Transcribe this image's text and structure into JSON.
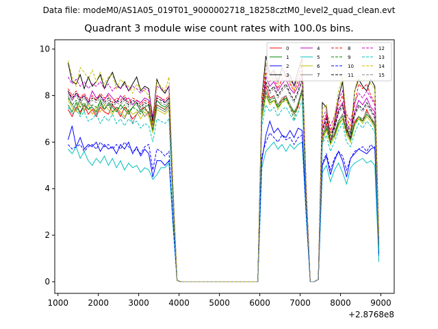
{
  "page": {
    "file_line": "Data file: modeM0/AS1A05_019T01_9000002718_18258cztM0_level2_quad_clean.evt"
  },
  "chart_data": {
    "type": "line",
    "title": "Quadrant 3 module wise count rates with 100.0s bins.",
    "xlabel": "",
    "ylabel": "",
    "x_offset_label": "+2.8768e8",
    "xlim": [
      920,
      9330
    ],
    "ylim": [
      -0.5,
      10.4
    ],
    "xticks": [
      1000,
      2000,
      3000,
      4000,
      5000,
      6000,
      7000,
      8000,
      9000
    ],
    "xtick_labels": [
      "1000",
      "2000",
      "3000",
      "4000",
      "5000",
      "6000",
      "7000",
      "8000",
      "9000"
    ],
    "yticks": [
      0,
      2,
      4,
      6,
      8,
      10
    ],
    "ytick_labels": [
      "0",
      "2",
      "4",
      "6",
      "8",
      "10"
    ],
    "legend_loc": "upper-right",
    "legend_columns": 4,
    "x": [
      1250,
      1350,
      1450,
      1550,
      1650,
      1750,
      1850,
      1950,
      2050,
      2150,
      2250,
      2350,
      2450,
      2550,
      2650,
      2750,
      2850,
      2950,
      3050,
      3150,
      3250,
      3350,
      3450,
      3550,
      3650,
      3750,
      3850,
      3950,
      4050,
      5950,
      6050,
      6150,
      6250,
      6350,
      6450,
      6550,
      6650,
      6750,
      6850,
      6950,
      7050,
      7150,
      7250,
      7350,
      7450,
      7550,
      7650,
      7750,
      7850,
      7950,
      8050,
      8150,
      8250,
      8350,
      8450,
      8550,
      8650,
      8750,
      8850,
      8950
    ],
    "series": [
      {
        "name": "0",
        "color": "#ff0000",
        "dash": "solid",
        "values": [
          7.4,
          7.1,
          7.5,
          7.3,
          7.6,
          7.2,
          7.4,
          7.1,
          7.5,
          7.3,
          7.2,
          7.6,
          7.4,
          7.1,
          7.5,
          7.3,
          7.0,
          7.2,
          7.4,
          7.5,
          7.2,
          6.7,
          7.6,
          7.5,
          7.4,
          7.6,
          3.5,
          0.05,
          0.0,
          0.0,
          7.2,
          8.4,
          7.9,
          8.0,
          7.6,
          7.8,
          8.0,
          7.6,
          7.2,
          7.5,
          8.2,
          3.5,
          0.0,
          0.0,
          0.1,
          6.2,
          6.8,
          6.1,
          6.3,
          6.9,
          7.2,
          6.5,
          6.2,
          6.9,
          7.1,
          6.9,
          7.4,
          7.0,
          6.8,
          1.5
        ]
      },
      {
        "name": "1",
        "color": "#008000",
        "dash": "solid",
        "values": [
          7.6,
          7.3,
          7.7,
          7.2,
          7.6,
          7.4,
          7.5,
          7.3,
          7.8,
          7.4,
          7.7,
          7.5,
          7.3,
          7.6,
          7.4,
          7.2,
          7.5,
          7.7,
          7.3,
          7.5,
          7.6,
          6.9,
          7.8,
          7.6,
          7.5,
          7.7,
          3.5,
          0.05,
          0.0,
          0.0,
          7.0,
          8.0,
          7.7,
          7.8,
          7.5,
          7.7,
          7.9,
          7.6,
          7.3,
          7.6,
          8.2,
          3.5,
          0.0,
          0.0,
          0.1,
          6.0,
          6.6,
          6.3,
          6.2,
          6.8,
          7.0,
          6.6,
          6.3,
          6.8,
          7.0,
          6.9,
          7.2,
          7.0,
          6.7,
          1.3
        ]
      },
      {
        "name": "2",
        "color": "#0000ff",
        "dash": "solid",
        "values": [
          6.1,
          6.7,
          5.8,
          6.2,
          5.7,
          5.9,
          5.8,
          6.0,
          5.6,
          5.9,
          5.7,
          5.8,
          5.5,
          5.9,
          5.7,
          6.0,
          5.5,
          5.8,
          5.4,
          5.7,
          5.5,
          4.5,
          5.2,
          5.2,
          5.0,
          5.2,
          2.5,
          0.05,
          0.0,
          0.0,
          5.2,
          6.3,
          6.9,
          6.4,
          6.6,
          6.3,
          6.2,
          6.5,
          6.2,
          6.6,
          6.5,
          3.0,
          0.0,
          0.0,
          0.1,
          5.0,
          5.4,
          4.6,
          5.2,
          5.6,
          5.2,
          4.5,
          5.3,
          5.5,
          5.7,
          5.6,
          5.5,
          5.7,
          5.8,
          1.1
        ]
      },
      {
        "name": "3",
        "color": "#000000",
        "dash": "solid",
        "values": [
          9.4,
          8.6,
          8.5,
          8.9,
          8.3,
          8.8,
          8.4,
          8.6,
          8.9,
          8.3,
          8.7,
          9.0,
          8.5,
          8.3,
          8.6,
          8.2,
          8.5,
          8.8,
          8.2,
          8.4,
          8.3,
          6.9,
          8.7,
          8.3,
          8.1,
          8.4,
          4.0,
          0.05,
          0.0,
          0.0,
          7.9,
          9.7,
          8.9,
          9.1,
          8.6,
          9.2,
          8.8,
          8.9,
          8.4,
          9.1,
          9.6,
          4.0,
          0.0,
          0.0,
          0.1,
          7.7,
          7.5,
          5.9,
          6.8,
          7.9,
          8.6,
          6.6,
          6.1,
          8.2,
          8.7,
          8.4,
          8.2,
          8.7,
          8.4,
          1.9
        ]
      },
      {
        "name": "4",
        "color": "#bf00bf",
        "dash": "solid",
        "values": [
          8.2,
          7.8,
          8.1,
          7.9,
          8.0,
          7.7,
          8.2,
          7.9,
          8.0,
          7.8,
          8.1,
          7.9,
          7.7,
          8.0,
          7.8,
          7.9,
          7.6,
          7.8,
          7.7,
          7.9,
          7.8,
          6.6,
          8.0,
          7.9,
          7.7,
          7.9,
          3.6,
          0.05,
          0.0,
          0.0,
          7.4,
          8.8,
          8.4,
          8.6,
          8.2,
          8.5,
          8.7,
          8.3,
          8.1,
          8.4,
          8.9,
          3.6,
          0.0,
          0.0,
          0.1,
          6.6,
          7.1,
          6.4,
          6.7,
          7.4,
          7.7,
          6.8,
          6.5,
          7.3,
          7.8,
          7.6,
          7.9,
          7.5,
          7.3,
          1.6
        ]
      },
      {
        "name": "5",
        "color": "#00bfbf",
        "dash": "solid",
        "values": [
          5.7,
          5.5,
          5.8,
          5.3,
          5.6,
          5.2,
          5.0,
          5.3,
          5.1,
          5.4,
          5.0,
          5.3,
          4.9,
          5.2,
          4.8,
          5.1,
          4.9,
          5.0,
          4.7,
          4.9,
          4.8,
          4.4,
          4.6,
          4.9,
          4.9,
          5.1,
          2.4,
          0.05,
          0.0,
          0.0,
          4.9,
          5.6,
          5.8,
          6.0,
          5.7,
          5.9,
          5.6,
          5.9,
          5.7,
          5.9,
          6.0,
          2.8,
          0.0,
          0.0,
          0.1,
          4.7,
          5.0,
          4.3,
          4.8,
          5.1,
          4.7,
          4.2,
          4.9,
          5.1,
          5.2,
          5.3,
          5.1,
          5.2,
          5.0,
          0.85
        ]
      },
      {
        "name": "6",
        "color": "#bfbf00",
        "dash": "solid",
        "values": [
          7.8,
          7.5,
          7.3,
          7.7,
          7.4,
          7.6,
          7.2,
          7.5,
          7.3,
          7.6,
          7.4,
          7.2,
          7.5,
          7.3,
          7.1,
          7.4,
          7.2,
          7.3,
          7.0,
          7.3,
          7.1,
          6.4,
          7.4,
          7.3,
          7.2,
          7.4,
          3.4,
          0.05,
          0.0,
          0.0,
          7.1,
          8.0,
          7.6,
          7.8,
          7.4,
          7.7,
          7.8,
          7.5,
          7.2,
          7.6,
          8.1,
          3.4,
          0.0,
          0.0,
          0.1,
          6.1,
          6.5,
          5.9,
          6.2,
          6.7,
          7.0,
          6.3,
          6.0,
          6.7,
          7.0,
          6.8,
          7.1,
          6.9,
          6.6,
          1.4
        ]
      },
      {
        "name": "7",
        "color": "#808080",
        "dash": "solid",
        "values": [
          8.0,
          7.6,
          7.4,
          7.9,
          7.3,
          7.7,
          7.5,
          7.2,
          7.6,
          7.4,
          7.7,
          7.3,
          7.5,
          7.2,
          7.0,
          7.4,
          6.8,
          7.2,
          7.4,
          7.1,
          7.3,
          6.5,
          7.5,
          7.4,
          7.3,
          7.5,
          3.5,
          0.05,
          0.0,
          0.0,
          7.3,
          8.2,
          7.8,
          8.0,
          7.6,
          7.9,
          8.0,
          7.6,
          7.2,
          7.7,
          8.3,
          3.5,
          0.0,
          0.0,
          0.1,
          6.3,
          6.7,
          6.0,
          6.4,
          6.9,
          7.2,
          6.4,
          6.1,
          6.8,
          7.1,
          7.0,
          7.3,
          7.1,
          6.8,
          1.5
        ]
      },
      {
        "name": "8",
        "color": "#ff0000",
        "dash": "dashed",
        "values": [
          8.3,
          8.0,
          8.2,
          7.9,
          8.1,
          7.8,
          8.0,
          7.8,
          8.1,
          7.9,
          8.0,
          7.7,
          7.9,
          7.8,
          8.0,
          7.7,
          7.9,
          7.8,
          7.6,
          7.8,
          7.7,
          6.8,
          8.0,
          7.9,
          7.8,
          8.0,
          3.7,
          0.05,
          0.0,
          0.0,
          7.6,
          9.0,
          8.6,
          8.8,
          8.3,
          8.7,
          8.9,
          8.5,
          8.2,
          8.6,
          9.1,
          3.7,
          0.0,
          0.0,
          0.1,
          6.8,
          7.2,
          6.5,
          6.9,
          7.6,
          8.0,
          7.0,
          6.7,
          7.6,
          8.5,
          8.3,
          8.5,
          8.0,
          7.7,
          1.7
        ]
      },
      {
        "name": "9",
        "color": "#008000",
        "dash": "dashed",
        "values": [
          7.9,
          7.6,
          7.8,
          7.5,
          7.7,
          7.4,
          7.6,
          7.5,
          7.7,
          7.4,
          7.6,
          7.3,
          7.5,
          7.4,
          7.6,
          7.3,
          7.5,
          7.4,
          7.2,
          7.4,
          7.3,
          6.5,
          7.6,
          7.5,
          7.4,
          7.6,
          3.5,
          0.05,
          0.0,
          0.0,
          7.2,
          8.1,
          7.8,
          7.9,
          7.5,
          7.8,
          7.9,
          7.5,
          7.0,
          7.6,
          8.2,
          3.5,
          0.0,
          0.0,
          0.1,
          6.2,
          6.6,
          6.0,
          6.3,
          6.9,
          7.1,
          6.4,
          6.1,
          6.8,
          7.1,
          6.9,
          7.2,
          7.0,
          6.7,
          1.4
        ]
      },
      {
        "name": "10",
        "color": "#0000ff",
        "dash": "dashed",
        "values": [
          5.9,
          5.7,
          5.8,
          5.9,
          5.6,
          5.8,
          5.9,
          5.7,
          6.0,
          5.8,
          5.9,
          5.7,
          5.9,
          5.7,
          6.0,
          5.8,
          5.6,
          5.7,
          5.5,
          5.8,
          5.9,
          4.8,
          5.7,
          5.6,
          5.4,
          5.6,
          2.6,
          0.05,
          0.0,
          0.0,
          5.4,
          6.0,
          6.4,
          6.2,
          6.0,
          6.3,
          6.1,
          6.2,
          5.9,
          6.2,
          6.3,
          2.9,
          0.0,
          0.0,
          0.1,
          5.1,
          5.5,
          4.8,
          5.3,
          5.6,
          5.4,
          4.8,
          5.3,
          5.6,
          5.7,
          5.8,
          5.6,
          5.9,
          5.7,
          1.2
        ]
      },
      {
        "name": "11",
        "color": "#000000",
        "dash": "dashed",
        "values": [
          8.2,
          7.9,
          8.1,
          7.8,
          8.0,
          7.7,
          7.9,
          7.8,
          8.0,
          7.7,
          7.9,
          7.6,
          7.8,
          7.7,
          7.9,
          7.6,
          7.8,
          7.7,
          7.5,
          7.7,
          7.6,
          6.7,
          7.9,
          7.8,
          7.7,
          7.9,
          3.6,
          0.05,
          0.0,
          0.0,
          7.5,
          8.6,
          8.2,
          8.4,
          8.0,
          8.3,
          8.5,
          8.1,
          7.8,
          8.2,
          8.7,
          3.6,
          0.0,
          0.0,
          0.1,
          6.5,
          7.0,
          6.3,
          6.6,
          7.3,
          7.6,
          6.7,
          6.4,
          7.2,
          7.6,
          7.4,
          7.7,
          7.4,
          7.1,
          1.6
        ]
      },
      {
        "name": "12",
        "color": "#bf00bf",
        "dash": "dashed",
        "values": [
          8.8,
          8.5,
          8.7,
          8.4,
          8.6,
          8.3,
          8.5,
          8.4,
          8.6,
          8.3,
          8.5,
          8.2,
          8.4,
          8.3,
          8.5,
          8.2,
          8.4,
          8.3,
          8.1,
          8.3,
          8.2,
          7.1,
          8.4,
          8.3,
          8.2,
          8.4,
          3.9,
          0.05,
          0.0,
          0.0,
          7.8,
          9.3,
          8.9,
          9.0,
          8.6,
          8.9,
          9.1,
          8.7,
          8.4,
          8.8,
          9.3,
          3.9,
          0.0,
          0.0,
          0.1,
          7.0,
          7.4,
          6.7,
          7.1,
          7.8,
          8.2,
          7.2,
          6.9,
          7.7,
          8.1,
          7.9,
          8.2,
          7.9,
          7.6,
          1.8
        ]
      },
      {
        "name": "13",
        "color": "#00bfbf",
        "dash": "dashed",
        "values": [
          7.5,
          7.2,
          7.4,
          7.1,
          7.3,
          6.9,
          7.0,
          7.2,
          6.8,
          7.1,
          6.9,
          7.2,
          6.8,
          7.0,
          6.7,
          7.0,
          6.8,
          6.9,
          6.6,
          6.8,
          6.7,
          6.0,
          7.0,
          6.9,
          6.8,
          7.0,
          3.2,
          0.05,
          0.0,
          0.0,
          6.7,
          7.6,
          7.3,
          7.5,
          7.1,
          7.4,
          7.5,
          7.2,
          6.9,
          7.3,
          7.8,
          3.3,
          0.0,
          0.0,
          0.1,
          5.9,
          6.3,
          5.6,
          6.0,
          6.5,
          6.8,
          6.0,
          5.8,
          6.4,
          6.8,
          6.6,
          6.9,
          6.7,
          6.4,
          1.3
        ]
      },
      {
        "name": "14",
        "color": "#bfbf00",
        "dash": "dashed",
        "values": [
          9.5,
          8.8,
          8.4,
          9.2,
          9.0,
          8.7,
          9.1,
          8.6,
          9.0,
          8.5,
          8.8,
          8.9,
          8.3,
          8.7,
          8.5,
          8.4,
          8.1,
          8.5,
          8.3,
          8.2,
          8.0,
          6.6,
          8.6,
          8.4,
          8.2,
          8.8,
          4.0,
          0.05,
          0.0,
          0.0,
          7.8,
          9.4,
          8.8,
          9.0,
          8.5,
          9.1,
          8.9,
          8.6,
          8.2,
          8.9,
          9.5,
          4.0,
          0.0,
          0.0,
          0.1,
          7.4,
          7.6,
          6.3,
          7.1,
          8.2,
          8.8,
          7.0,
          6.5,
          8.2,
          8.9,
          8.6,
          8.8,
          8.5,
          8.3,
          1.9
        ]
      },
      {
        "name": "15",
        "color": "#808080",
        "dash": "dashed",
        "values": [
          8.1,
          7.8,
          8.0,
          7.7,
          7.9,
          7.6,
          7.8,
          7.7,
          7.9,
          7.6,
          7.8,
          7.5,
          7.7,
          7.6,
          7.8,
          7.5,
          7.7,
          7.6,
          7.4,
          7.6,
          7.5,
          6.6,
          7.8,
          7.7,
          7.6,
          7.8,
          3.6,
          0.05,
          0.0,
          0.0,
          7.4,
          8.5,
          8.1,
          8.3,
          7.9,
          8.2,
          8.4,
          8.0,
          7.7,
          8.1,
          8.6,
          3.6,
          0.0,
          0.0,
          0.1,
          6.4,
          6.9,
          6.2,
          6.5,
          7.2,
          7.5,
          6.6,
          6.3,
          7.1,
          7.5,
          7.3,
          7.6,
          7.3,
          7.0,
          1.6
        ]
      }
    ]
  }
}
